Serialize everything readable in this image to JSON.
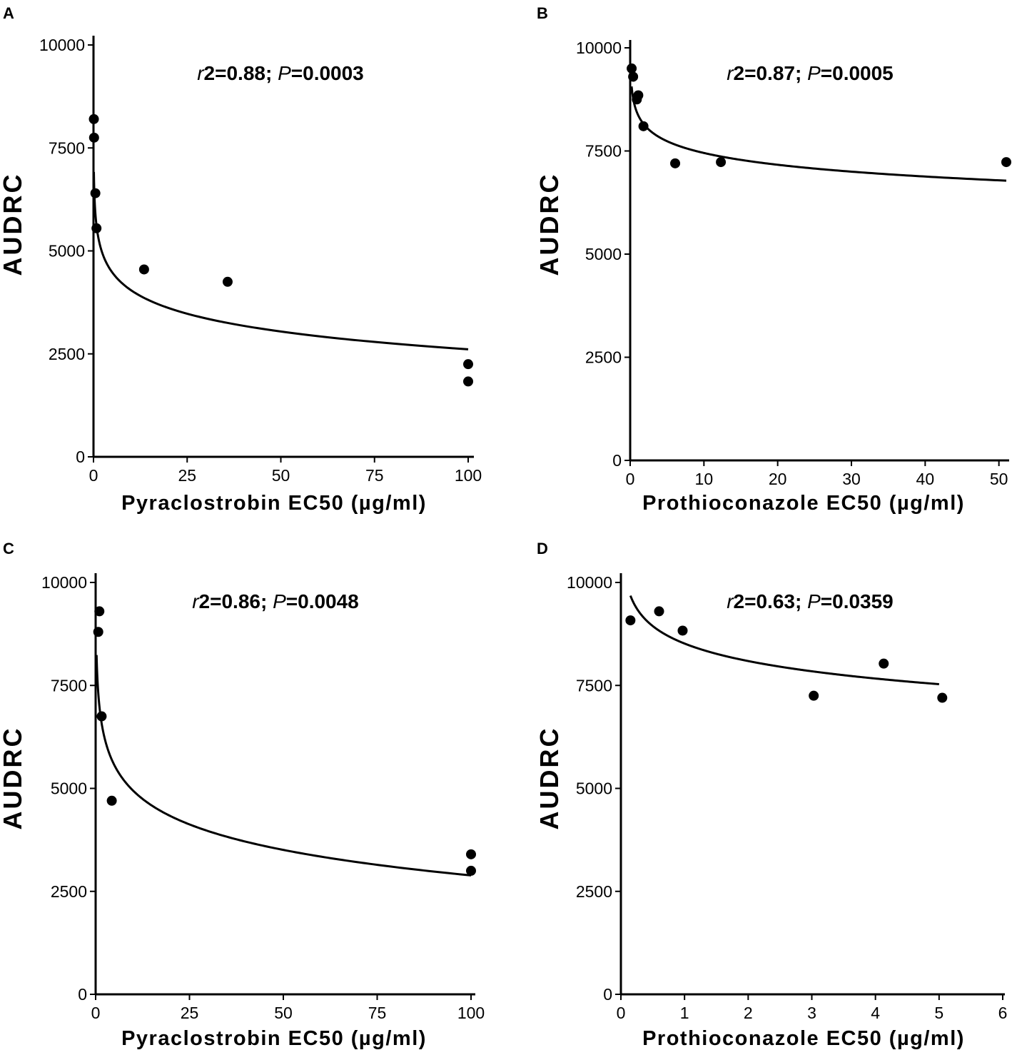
{
  "chart_data": [
    {
      "panel": "A",
      "type": "scatter",
      "annotation": {
        "r_label": "r",
        "r_value": "2=0.88;",
        "p_label": "P",
        "p_value": "=0.0003"
      },
      "xlabel": "Pyraclostrobin EC50 (µg/ml)",
      "ylabel": "AUDRC",
      "xlim": [
        0,
        100
      ],
      "ylim": [
        0,
        10000
      ],
      "xticks": [
        0,
        25,
        50,
        75,
        100
      ],
      "yticks": [
        0,
        2500,
        5000,
        7500,
        10000
      ],
      "points": [
        {
          "x": 0.1,
          "y": 8200
        },
        {
          "x": 0.15,
          "y": 7750
        },
        {
          "x": 0.5,
          "y": 6400
        },
        {
          "x": 0.8,
          "y": 5550
        },
        {
          "x": 13.5,
          "y": 4550
        },
        {
          "x": 35.8,
          "y": 4250
        },
        {
          "x": 100,
          "y": 2250
        },
        {
          "x": 100,
          "y": 1830
        }
      ],
      "fit": {
        "model": "y = a + b*ln(x)",
        "a": 5482,
        "b": -623.5,
        "x_range": [
          0.1,
          100
        ]
      }
    },
    {
      "panel": "B",
      "type": "scatter",
      "annotation": {
        "r_label": "r",
        "r_value": "2=0.87;",
        "p_label": "P",
        "p_value": "=0.0005"
      },
      "xlabel": "Prothioconazole EC50 (µg/ml)",
      "ylabel": "AUDRC",
      "xlim": [
        0,
        51
      ],
      "ylim": [
        0,
        10000
      ],
      "xticks": [
        0,
        10,
        20,
        30,
        40,
        50
      ],
      "yticks": [
        0,
        2500,
        5000,
        7500,
        10000
      ],
      "points": [
        {
          "x": 0.2,
          "y": 9500
        },
        {
          "x": 0.4,
          "y": 9300
        },
        {
          "x": 0.9,
          "y": 8750
        },
        {
          "x": 1.1,
          "y": 8850
        },
        {
          "x": 1.8,
          "y": 8100
        },
        {
          "x": 6.1,
          "y": 7200
        },
        {
          "x": 12.3,
          "y": 7230
        },
        {
          "x": 51.0,
          "y": 7230
        }
      ],
      "fit": {
        "model": "y = a + b*ln(x)",
        "a": 8400,
        "b": -412,
        "x_range": [
          0.2,
          51
        ]
      }
    },
    {
      "panel": "C",
      "type": "scatter",
      "annotation": {
        "r_label": "r",
        "r_value": "2=0.86;",
        "p_label": "P",
        "p_value": "=0.0048"
      },
      "xlabel": "Pyraclostrobin EC50 (µg/ml)",
      "ylabel": "AUDRC",
      "xlim": [
        0,
        100
      ],
      "ylim": [
        0,
        10000
      ],
      "xticks": [
        0,
        25,
        50,
        75,
        100
      ],
      "yticks": [
        0,
        2500,
        5000,
        7500,
        10000
      ],
      "points": [
        {
          "x": 0.7,
          "y": 8800
        },
        {
          "x": 1.0,
          "y": 9300
        },
        {
          "x": 1.6,
          "y": 6750
        },
        {
          "x": 4.3,
          "y": 4700
        },
        {
          "x": 100,
          "y": 3400
        },
        {
          "x": 100,
          "y": 3000
        }
      ],
      "fit": {
        "model": "y = a + b*ln(x)",
        "a": 7000,
        "b": -893,
        "x_range": [
          0.25,
          100
        ]
      }
    },
    {
      "panel": "D",
      "type": "scatter",
      "annotation": {
        "r_label": "r",
        "r_value": "2=0.63;",
        "p_label": "P",
        "p_value": "=0.0359"
      },
      "xlabel": "Prothioconazole EC50 (µg/ml)",
      "ylabel": "AUDRC",
      "xlim": [
        0,
        6
      ],
      "ylim": [
        0,
        10000
      ],
      "xticks": [
        0,
        1,
        2,
        3,
        4,
        5,
        6
      ],
      "yticks": [
        0,
        2500,
        5000,
        7500,
        10000
      ],
      "points": [
        {
          "x": 0.15,
          "y": 9080
        },
        {
          "x": 0.6,
          "y": 9300
        },
        {
          "x": 0.97,
          "y": 8830
        },
        {
          "x": 3.03,
          "y": 7250
        },
        {
          "x": 4.13,
          "y": 8030
        },
        {
          "x": 5.05,
          "y": 7200
        }
      ],
      "fit": {
        "model": "y = a + b*ln(x)",
        "a": 8517,
        "b": -613,
        "x_range": [
          0.15,
          5.0
        ]
      }
    }
  ]
}
